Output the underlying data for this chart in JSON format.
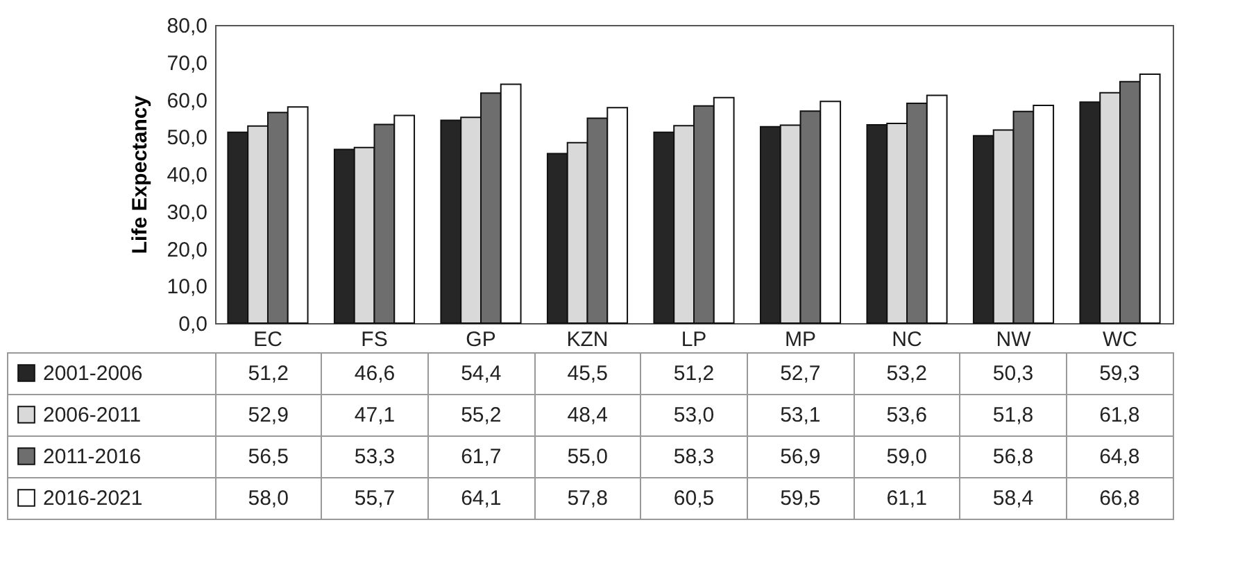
{
  "chart_data": {
    "type": "bar",
    "ylabel": "Life Expectancy",
    "categories": [
      "EC",
      "FS",
      "GP",
      "KZN",
      "LP",
      "MP",
      "NC",
      "NW",
      "WC"
    ],
    "series": [
      {
        "name": "2001-2006",
        "color": "#262626",
        "values": [
          51.2,
          46.6,
          54.4,
          45.5,
          51.2,
          52.7,
          53.2,
          50.3,
          59.3
        ],
        "value_labels": [
          "51,2",
          "46,6",
          "54,4",
          "45,5",
          "51,2",
          "52,7",
          "53,2",
          "50,3",
          "59,3"
        ]
      },
      {
        "name": "2006-2011",
        "color": "#d9d9d9",
        "values": [
          52.9,
          47.1,
          55.2,
          48.4,
          53.0,
          53.1,
          53.6,
          51.8,
          61.8
        ],
        "value_labels": [
          "52,9",
          "47,1",
          "55,2",
          "48,4",
          "53,0",
          "53,1",
          "53,6",
          "51,8",
          "61,8"
        ]
      },
      {
        "name": "2011-2016",
        "color": "#6e6e6e",
        "values": [
          56.5,
          53.3,
          61.7,
          55.0,
          58.3,
          56.9,
          59.0,
          56.8,
          64.8
        ],
        "value_labels": [
          "56,5",
          "53,3",
          "61,7",
          "55,0",
          "58,3",
          "56,9",
          "59,0",
          "56,8",
          "64,8"
        ]
      },
      {
        "name": "2016-2021",
        "color": "#ffffff",
        "values": [
          58.0,
          55.7,
          64.1,
          57.8,
          60.5,
          59.5,
          61.1,
          58.4,
          66.8
        ],
        "value_labels": [
          "58,0",
          "55,7",
          "64,1",
          "57,8",
          "60,5",
          "59,5",
          "61,1",
          "58,4",
          "66,8"
        ]
      }
    ],
    "ylim": [
      0,
      80
    ],
    "yticks": [
      {
        "value": 0,
        "label": "0,0"
      },
      {
        "value": 10,
        "label": "10,0"
      },
      {
        "value": 20,
        "label": "20,0"
      },
      {
        "value": 30,
        "label": "30,0"
      },
      {
        "value": 40,
        "label": "40,0"
      },
      {
        "value": 50,
        "label": "50,0"
      },
      {
        "value": 60,
        "label": "60,0"
      },
      {
        "value": 70,
        "label": "70,0"
      },
      {
        "value": 80,
        "label": "80,0"
      }
    ],
    "legend": "bottom left"
  }
}
